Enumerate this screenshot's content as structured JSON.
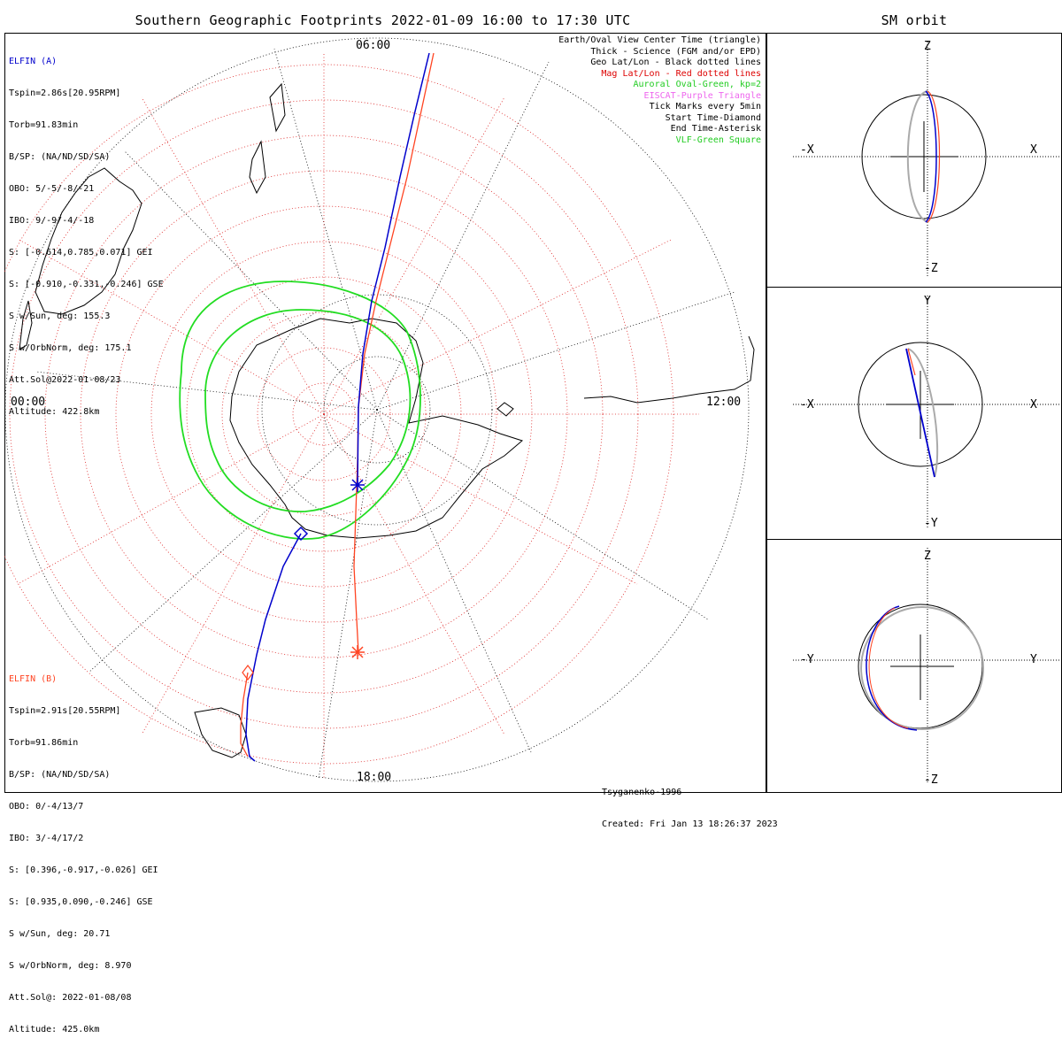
{
  "title": "Southern Geographic Footprints 2022-01-09 16:00 to 17:30 UTC",
  "sm_title": "SM orbit",
  "hour_labels": {
    "top": "06:00",
    "left": "00:00",
    "right": "12:00",
    "bottom": "18:00"
  },
  "elfin_a": {
    "name": "ELFIN (A)",
    "color": "#0000cc",
    "lines": [
      "Tspin=2.86s[20.95RPM]",
      "Torb=91.83min",
      "B/SP: (NA/ND/SD/SA)",
      "OBO: 5/-5/-8/-21",
      "IBO: 9/-9/-4/-18",
      "S: [-0.614,0.785,0.071] GEI",
      "S: [-0.910,-0.331,-0.246] GSE",
      "S w/Sun, deg: 155.3",
      "S w/OrbNorm, deg: 175.1",
      "Att.Sol@2022-01-08/23",
      "Altitude: 422.8km"
    ]
  },
  "elfin_b": {
    "name": "ELFIN (B)",
    "color": "#ff4422",
    "lines": [
      "Tspin=2.91s[20.55RPM]",
      "Torb=91.86min",
      "B/SP: (NA/ND/SD/SA)",
      "OBO: 0/-4/13/7",
      "IBO: 3/-4/17/2",
      "S: [0.396,-0.917,-0.026] GEI",
      "S: [0.935,0.090,-0.246] GSE",
      "S w/Sun, deg: 20.71",
      "S w/OrbNorm, deg: 8.970",
      "Att.Sol@: 2022-01-08/08",
      "Altitude: 425.0km"
    ]
  },
  "legend": [
    {
      "text": "Earth/Oval View Center Time (triangle)",
      "color": "#000000"
    },
    {
      "text": "Thick - Science (FGM and/or EPD)",
      "color": "#000000"
    },
    {
      "text": "Geo Lat/Lon - Black dotted lines",
      "color": "#000000"
    },
    {
      "text": "Mag Lat/Lon - Red dotted lines",
      "color": "#dd0000"
    },
    {
      "text": "Auroral Oval-Green, kp=2",
      "color": "#22cc22"
    },
    {
      "text": "EISCAT-Purple Triangle",
      "color": "#ee66ee"
    },
    {
      "text": "Tick Marks every 5min",
      "color": "#000000"
    },
    {
      "text": "Start Time-Diamond",
      "color": "#000000"
    },
    {
      "text": "End Time-Asterisk",
      "color": "#000000"
    },
    {
      "text": "VLF-Green Square",
      "color": "#22cc22"
    }
  ],
  "credits": [
    "Tsyganenko-1996",
    "Created: Fri Jan 13 18:26:37 2023"
  ],
  "panels": [
    {
      "top": "Z",
      "bottom": "-Z",
      "left": "-X",
      "right": "X"
    },
    {
      "top": "Y",
      "bottom": "-Y",
      "left": "-X",
      "right": "X"
    },
    {
      "top": "Z",
      "bottom": "-Z",
      "left": "-Y",
      "right": "Y"
    }
  ]
}
